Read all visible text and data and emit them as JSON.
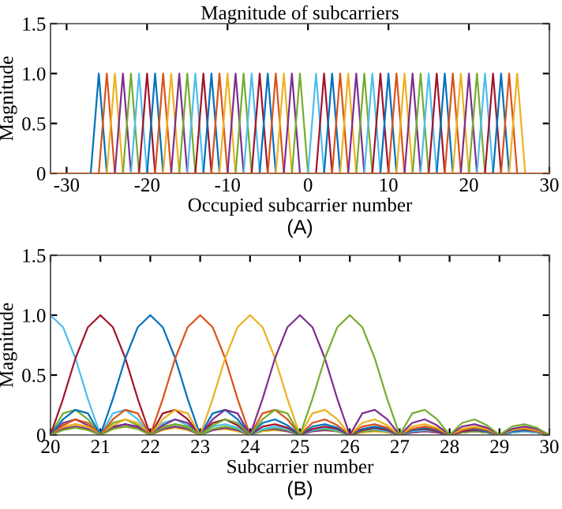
{
  "chart_data": [
    {
      "type": "line",
      "title": "Magnitude of subcarriers",
      "xlabel": "Occupied subcarrier number",
      "ylabel": "Magnitude",
      "annotations": [
        "(A)"
      ],
      "xlim": [
        -32,
        30
      ],
      "xticks": [
        -30,
        -20,
        -10,
        0,
        10,
        20,
        30
      ],
      "ylim": [
        0,
        1.5
      ],
      "yticks": [
        0,
        0.5,
        {
          "value": 1,
          "label": "1.0"
        },
        1.5
      ],
      "grid": false,
      "legend": false,
      "series": [
        {
          "color": "#d95319",
          "x": [
            -32,
            30
          ],
          "values": [
            0,
            0
          ]
        },
        {
          "color": "#0072bd",
          "x": [
            -27,
            -26,
            -25
          ],
          "values": [
            0,
            1,
            0
          ]
        },
        {
          "color": "#d95319",
          "x": [
            -26,
            -25,
            -24
          ],
          "values": [
            0,
            1,
            0
          ]
        },
        {
          "color": "#edb120",
          "x": [
            -25,
            -24,
            -23
          ],
          "values": [
            0,
            1,
            0
          ]
        },
        {
          "color": "#7e2f8e",
          "x": [
            -24,
            -23,
            -22
          ],
          "values": [
            0,
            1,
            0
          ]
        },
        {
          "color": "#77ac30",
          "x": [
            -23,
            -22,
            -21
          ],
          "values": [
            0,
            1,
            0
          ]
        },
        {
          "color": "#4dbeee",
          "x": [
            -22,
            -21,
            -20
          ],
          "values": [
            0,
            1,
            0
          ]
        },
        {
          "color": "#a2142f",
          "x": [
            -21,
            -20,
            -19
          ],
          "values": [
            0,
            1,
            0
          ]
        },
        {
          "color": "#0072bd",
          "x": [
            -20,
            -19,
            -18
          ],
          "values": [
            0,
            1,
            0
          ]
        },
        {
          "color": "#d95319",
          "x": [
            -19,
            -18,
            -17
          ],
          "values": [
            0,
            1,
            0
          ]
        },
        {
          "color": "#edb120",
          "x": [
            -18,
            -17,
            -16
          ],
          "values": [
            0,
            1,
            0
          ]
        },
        {
          "color": "#7e2f8e",
          "x": [
            -17,
            -16,
            -15
          ],
          "values": [
            0,
            1,
            0
          ]
        },
        {
          "color": "#77ac30",
          "x": [
            -16,
            -15,
            -14
          ],
          "values": [
            0,
            1,
            0
          ]
        },
        {
          "color": "#4dbeee",
          "x": [
            -15,
            -14,
            -13
          ],
          "values": [
            0,
            1,
            0
          ]
        },
        {
          "color": "#a2142f",
          "x": [
            -14,
            -13,
            -12
          ],
          "values": [
            0,
            1,
            0
          ]
        },
        {
          "color": "#0072bd",
          "x": [
            -13,
            -12,
            -11
          ],
          "values": [
            0,
            1,
            0
          ]
        },
        {
          "color": "#d95319",
          "x": [
            -12,
            -11,
            -10
          ],
          "values": [
            0,
            1,
            0
          ]
        },
        {
          "color": "#edb120",
          "x": [
            -11,
            -10,
            -9
          ],
          "values": [
            0,
            1,
            0
          ]
        },
        {
          "color": "#7e2f8e",
          "x": [
            -10,
            -9,
            -8
          ],
          "values": [
            0,
            1,
            0
          ]
        },
        {
          "color": "#77ac30",
          "x": [
            -9,
            -8,
            -7
          ],
          "values": [
            0,
            1,
            0
          ]
        },
        {
          "color": "#4dbeee",
          "x": [
            -8,
            -7,
            -6
          ],
          "values": [
            0,
            1,
            0
          ]
        },
        {
          "color": "#a2142f",
          "x": [
            -7,
            -6,
            -5
          ],
          "values": [
            0,
            1,
            0
          ]
        },
        {
          "color": "#0072bd",
          "x": [
            -6,
            -5,
            -4
          ],
          "values": [
            0,
            1,
            0
          ]
        },
        {
          "color": "#d95319",
          "x": [
            -5,
            -4,
            -3
          ],
          "values": [
            0,
            1,
            0
          ]
        },
        {
          "color": "#edb120",
          "x": [
            -4,
            -3,
            -2
          ],
          "values": [
            0,
            1,
            0
          ]
        },
        {
          "color": "#7e2f8e",
          "x": [
            -3,
            -2,
            -1
          ],
          "values": [
            0,
            1,
            0
          ]
        },
        {
          "color": "#77ac30",
          "x": [
            -2,
            -1,
            0
          ],
          "values": [
            0,
            1,
            0
          ]
        },
        {
          "color": "#4dbeee",
          "x": [
            0,
            1,
            2
          ],
          "values": [
            0,
            1,
            0
          ]
        },
        {
          "color": "#a2142f",
          "x": [
            1,
            2,
            3
          ],
          "values": [
            0,
            1,
            0
          ]
        },
        {
          "color": "#0072bd",
          "x": [
            2,
            3,
            4
          ],
          "values": [
            0,
            1,
            0
          ]
        },
        {
          "color": "#d95319",
          "x": [
            3,
            4,
            5
          ],
          "values": [
            0,
            1,
            0
          ]
        },
        {
          "color": "#edb120",
          "x": [
            4,
            5,
            6
          ],
          "values": [
            0,
            1,
            0
          ]
        },
        {
          "color": "#7e2f8e",
          "x": [
            5,
            6,
            7
          ],
          "values": [
            0,
            1,
            0
          ]
        },
        {
          "color": "#77ac30",
          "x": [
            6,
            7,
            8
          ],
          "values": [
            0,
            1,
            0
          ]
        },
        {
          "color": "#4dbeee",
          "x": [
            7,
            8,
            9
          ],
          "values": [
            0,
            1,
            0
          ]
        },
        {
          "color": "#a2142f",
          "x": [
            8,
            9,
            10
          ],
          "values": [
            0,
            1,
            0
          ]
        },
        {
          "color": "#0072bd",
          "x": [
            9,
            10,
            11
          ],
          "values": [
            0,
            1,
            0
          ]
        },
        {
          "color": "#d95319",
          "x": [
            10,
            11,
            12
          ],
          "values": [
            0,
            1,
            0
          ]
        },
        {
          "color": "#edb120",
          "x": [
            11,
            12,
            13
          ],
          "values": [
            0,
            1,
            0
          ]
        },
        {
          "color": "#7e2f8e",
          "x": [
            12,
            13,
            14
          ],
          "values": [
            0,
            1,
            0
          ]
        },
        {
          "color": "#77ac30",
          "x": [
            13,
            14,
            15
          ],
          "values": [
            0,
            1,
            0
          ]
        },
        {
          "color": "#4dbeee",
          "x": [
            14,
            15,
            16
          ],
          "values": [
            0,
            1,
            0
          ]
        },
        {
          "color": "#a2142f",
          "x": [
            15,
            16,
            17
          ],
          "values": [
            0,
            1,
            0
          ]
        },
        {
          "color": "#0072bd",
          "x": [
            16,
            17,
            18
          ],
          "values": [
            0,
            1,
            0
          ]
        },
        {
          "color": "#d95319",
          "x": [
            17,
            18,
            19
          ],
          "values": [
            0,
            1,
            0
          ]
        },
        {
          "color": "#edb120",
          "x": [
            18,
            19,
            20
          ],
          "values": [
            0,
            1,
            0
          ]
        },
        {
          "color": "#7e2f8e",
          "x": [
            19,
            20,
            21
          ],
          "values": [
            0,
            1,
            0
          ]
        },
        {
          "color": "#77ac30",
          "x": [
            20,
            21,
            22
          ],
          "values": [
            0,
            1,
            0
          ]
        },
        {
          "color": "#4dbeee",
          "x": [
            21,
            22,
            23
          ],
          "values": [
            0,
            1,
            0
          ]
        },
        {
          "color": "#a2142f",
          "x": [
            22,
            23,
            24
          ],
          "values": [
            0,
            1,
            0
          ]
        },
        {
          "color": "#0072bd",
          "x": [
            23,
            24,
            25
          ],
          "values": [
            0,
            1,
            0
          ]
        },
        {
          "color": "#d95319",
          "x": [
            24,
            25,
            26
          ],
          "values": [
            0,
            1,
            0
          ]
        },
        {
          "color": "#edb120",
          "x": [
            25,
            26,
            27
          ],
          "values": [
            0,
            1,
            0
          ]
        }
      ]
    },
    {
      "type": "line",
      "xlabel": "Subcarrier number",
      "ylabel": "Magnitude",
      "annotations": [
        "(B)"
      ],
      "xlim": [
        20,
        30
      ],
      "xticks": [
        20,
        21,
        22,
        23,
        24,
        25,
        26,
        27,
        28,
        29,
        30
      ],
      "ylim": [
        0,
        1.5
      ],
      "yticks": [
        0,
        0.5,
        {
          "value": 1,
          "label": "1.0"
        },
        1.5
      ],
      "grid": false,
      "legend": false,
      "x": [
        20,
        20.25,
        20.5,
        20.75,
        21,
        21.25,
        21.5,
        21.75,
        22,
        22.25,
        22.5,
        22.75,
        23,
        23.25,
        23.5,
        23.75,
        24,
        24.25,
        24.5,
        24.75,
        25,
        25.25,
        25.5,
        25.75,
        26,
        26.25,
        26.5,
        26.75,
        27,
        27.25,
        27.5,
        27.75,
        28,
        28.25,
        28.5,
        28.75,
        29,
        29.25,
        29.5,
        29.75,
        30
      ],
      "series": [
        {
          "color": "#edb120",
          "values": [
            0,
            0.07,
            0.09,
            0.06,
            0,
            0.05,
            0.07,
            0.05,
            0,
            0.04,
            0.06,
            0.04,
            0,
            0.04,
            0.05,
            0.03,
            0,
            0.03,
            0.04,
            0.03,
            0,
            0.03,
            0.04,
            0.03,
            0,
            0.02,
            0.03,
            0.02,
            0,
            0.02,
            0.03,
            0.02,
            0,
            0.02,
            0.03,
            0.02,
            0,
            0.02,
            0.03,
            0.02,
            0
          ]
        },
        {
          "color": "#7e2f8e",
          "values": [
            0,
            0.1,
            0.13,
            0.08,
            0,
            0.07,
            0.09,
            0.06,
            0,
            0.05,
            0.07,
            0.05,
            0,
            0.04,
            0.06,
            0.04,
            0,
            0.04,
            0.05,
            0.03,
            0,
            0.03,
            0.04,
            0.03,
            0,
            0.03,
            0.04,
            0.03,
            0,
            0.02,
            0.03,
            0.02,
            0,
            0.02,
            0.03,
            0.02,
            0,
            0.02,
            0.03,
            0.02,
            0
          ]
        },
        {
          "color": "#77ac30",
          "values": [
            0,
            0.18,
            0.21,
            0.13,
            0,
            0.1,
            0.13,
            0.08,
            0,
            0.07,
            0.09,
            0.06,
            0,
            0.05,
            0.07,
            0.05,
            0,
            0.04,
            0.06,
            0.04,
            0,
            0.04,
            0.05,
            0.03,
            0,
            0.03,
            0.04,
            0.03,
            0,
            0.03,
            0.04,
            0.03,
            0,
            0.02,
            0.03,
            0.02,
            0,
            0.02,
            0.03,
            0.02,
            0
          ]
        },
        {
          "color": "#4dbeee",
          "values": [
            1,
            0.9,
            0.64,
            0.3,
            0,
            0.18,
            0.21,
            0.13,
            0,
            0.1,
            0.13,
            0.08,
            0,
            0.07,
            0.09,
            0.06,
            0,
            0.05,
            0.07,
            0.05,
            0,
            0.04,
            0.06,
            0.04,
            0,
            0.04,
            0.05,
            0.03,
            0,
            0.03,
            0.04,
            0.03,
            0,
            0.03,
            0.04,
            0.03,
            0,
            0.02,
            0.03,
            0.02,
            0
          ]
        },
        {
          "color": "#a2142f",
          "values": [
            0,
            0.3,
            0.64,
            0.9,
            1,
            0.9,
            0.64,
            0.3,
            0,
            0.18,
            0.21,
            0.13,
            0,
            0.1,
            0.13,
            0.08,
            0,
            0.07,
            0.09,
            0.06,
            0,
            0.05,
            0.07,
            0.05,
            0,
            0.04,
            0.06,
            0.04,
            0,
            0.04,
            0.05,
            0.03,
            0,
            0.03,
            0.04,
            0.03,
            0,
            0.03,
            0.04,
            0.03,
            0
          ]
        },
        {
          "color": "#0072bd",
          "values": [
            0,
            0.13,
            0.21,
            0.18,
            0,
            0.3,
            0.64,
            0.9,
            1,
            0.9,
            0.64,
            0.3,
            0,
            0.18,
            0.21,
            0.13,
            0,
            0.1,
            0.13,
            0.08,
            0,
            0.07,
            0.09,
            0.06,
            0,
            0.05,
            0.07,
            0.05,
            0,
            0.04,
            0.06,
            0.04,
            0,
            0.04,
            0.05,
            0.03,
            0,
            0.03,
            0.04,
            0.03,
            0
          ]
        },
        {
          "color": "#d95319",
          "values": [
            0,
            0.08,
            0.13,
            0.1,
            0,
            0.13,
            0.21,
            0.18,
            0,
            0.3,
            0.64,
            0.9,
            1,
            0.9,
            0.64,
            0.3,
            0,
            0.18,
            0.21,
            0.13,
            0,
            0.1,
            0.13,
            0.08,
            0,
            0.07,
            0.09,
            0.06,
            0,
            0.05,
            0.07,
            0.05,
            0,
            0.04,
            0.06,
            0.04,
            0,
            0.04,
            0.05,
            0.03,
            0
          ]
        },
        {
          "color": "#edb120",
          "values": [
            0,
            0.06,
            0.09,
            0.07,
            0,
            0.08,
            0.13,
            0.1,
            0,
            0.13,
            0.21,
            0.18,
            0,
            0.3,
            0.64,
            0.9,
            1,
            0.9,
            0.64,
            0.3,
            0,
            0.18,
            0.21,
            0.13,
            0,
            0.1,
            0.13,
            0.08,
            0,
            0.07,
            0.09,
            0.06,
            0,
            0.05,
            0.07,
            0.05,
            0,
            0.04,
            0.06,
            0.04,
            0
          ]
        },
        {
          "color": "#7e2f8e",
          "values": [
            0,
            0.05,
            0.07,
            0.05,
            0,
            0.06,
            0.09,
            0.07,
            0,
            0.08,
            0.13,
            0.1,
            0,
            0.13,
            0.21,
            0.18,
            0,
            0.3,
            0.64,
            0.9,
            1,
            0.9,
            0.64,
            0.3,
            0,
            0.18,
            0.21,
            0.13,
            0,
            0.1,
            0.13,
            0.08,
            0,
            0.07,
            0.09,
            0.06,
            0,
            0.05,
            0.07,
            0.05,
            0
          ]
        },
        {
          "color": "#77ac30",
          "values": [
            0,
            0.04,
            0.06,
            0.04,
            0,
            0.05,
            0.07,
            0.05,
            0,
            0.06,
            0.09,
            0.07,
            0,
            0.08,
            0.13,
            0.1,
            0,
            0.13,
            0.21,
            0.18,
            0,
            0.3,
            0.64,
            0.9,
            1,
            0.9,
            0.64,
            0.3,
            0,
            0.18,
            0.21,
            0.13,
            0,
            0.1,
            0.13,
            0.08,
            0,
            0.07,
            0.09,
            0.06,
            0
          ]
        }
      ]
    }
  ]
}
